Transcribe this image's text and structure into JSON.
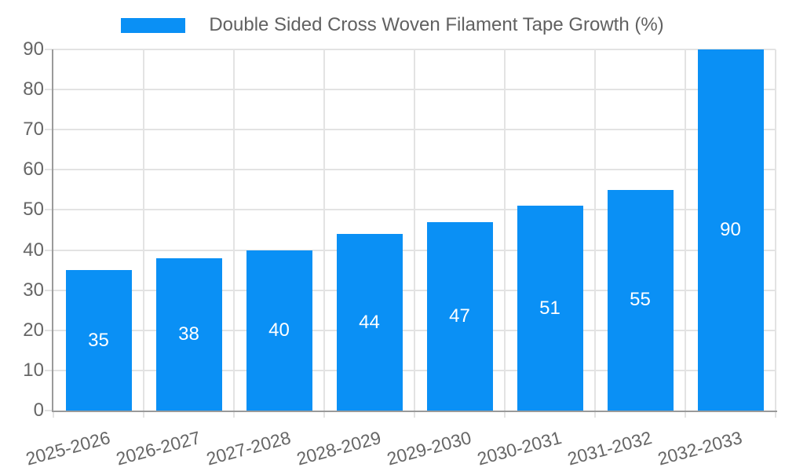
{
  "legend": {
    "label": "Double Sided Cross Woven Filament Tape Growth (%)"
  },
  "chart_data": {
    "type": "bar",
    "title": "Double Sided Cross Woven Filament Tape Growth (%)",
    "categories": [
      "2025-2026",
      "2026-2027",
      "2027-2028",
      "2028-2029",
      "2029-2030",
      "2030-2031",
      "2031-2032",
      "2032-2033"
    ],
    "values": [
      35,
      38,
      40,
      44,
      47,
      51,
      55,
      90
    ],
    "series_name": "Double Sided Cross Woven Filament Tape Growth (%)",
    "xlabel": "",
    "ylabel": "",
    "ylim": [
      0,
      90
    ],
    "yticks": [
      0,
      10,
      20,
      30,
      40,
      50,
      60,
      70,
      80,
      90
    ],
    "grid": "on",
    "legend_position": "top-center",
    "x_tick_rotation_deg": -15,
    "bar_value_labels_shown": true,
    "colors": {
      "bar": "#0a90f5",
      "value_label": "#ffffff",
      "axis": "#9a9a9a",
      "grid": "#e3e3e3",
      "tick_text": "#666666",
      "legend_text": "#616161"
    }
  }
}
